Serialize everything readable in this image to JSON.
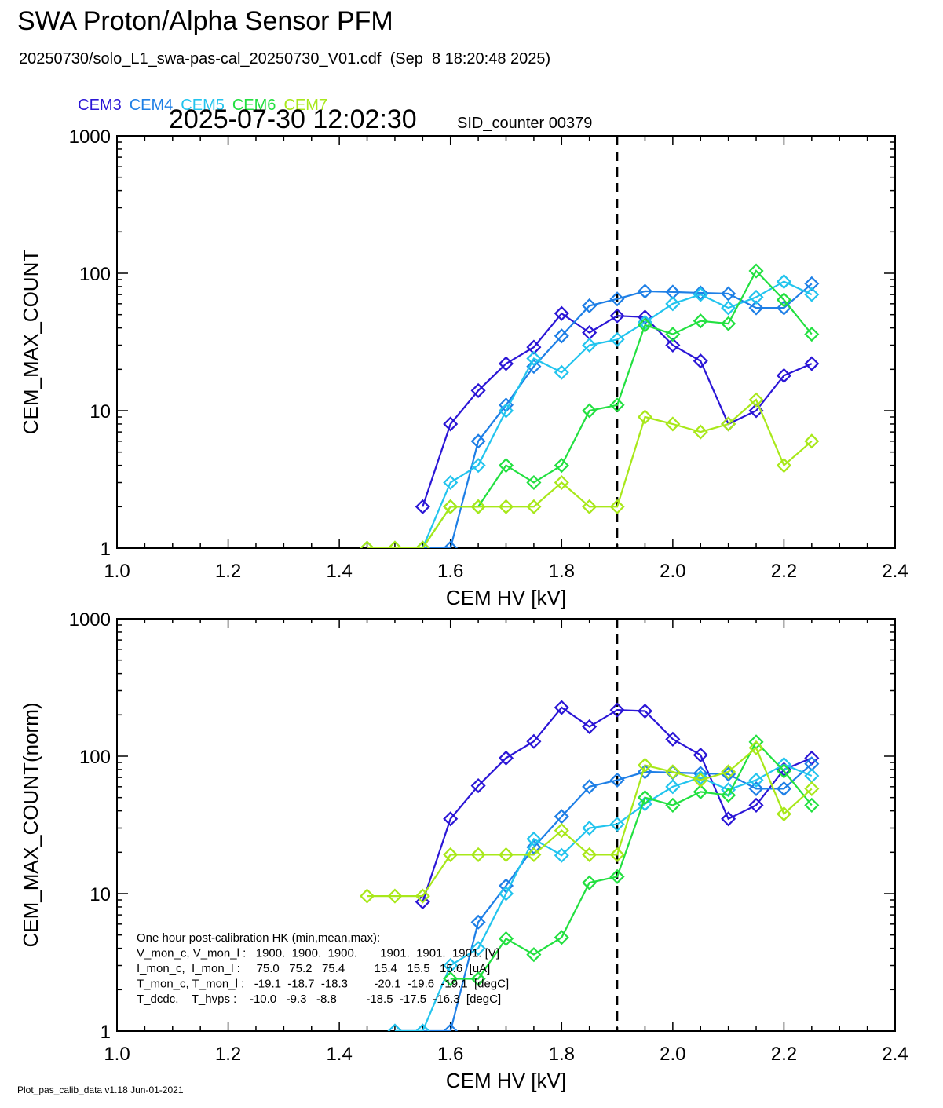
{
  "header": {
    "title": "SWA Proton/Alpha Sensor PFM",
    "subtitle": "20250730/solo_L1_swa-pas-cal_20250730_V01.cdf  (Sep  8 18:20:48 2025)",
    "timestamp": "2025-07-30 12:02:30",
    "sid_counter": "SID_counter 00379"
  },
  "legend": [
    {
      "name": "CEM3",
      "color": "#2b16d6"
    },
    {
      "name": "CEM4",
      "color": "#1e7fe6"
    },
    {
      "name": "CEM5",
      "color": "#22c4ee"
    },
    {
      "name": "CEM6",
      "color": "#22e040"
    },
    {
      "name": "CEM7",
      "color": "#a8e81a"
    }
  ],
  "hk_box": [
    "One hour post-calibration HK (min,mean,max):",
    "V_mon_c, V_mon_l :   1900.  1900.  1900.       1901.  1901.  1901. [V]",
    "I_mon_c,  I_mon_l :     75.0   75.2   75.4         15.4   15.5   15.6  [uA]",
    "T_mon_c, T_mon_l :   -19.1  -18.7  -18.3        -20.1  -19.6  -19.1  [degC]",
    "T_dcdc,    T_hvps :    -10.0   -9.3   -8.8         -18.5  -17.5  -16.3  [degC]"
  ],
  "footer": "Plot_pas_calib_data v1.18 Jun-01-2021",
  "chart_data": [
    {
      "type": "line",
      "xlabel": "CEM HV [kV]",
      "ylabel": "CEM_MAX_COUNT",
      "xlim": [
        1.0,
        2.4
      ],
      "ylim": [
        1,
        1000
      ],
      "yscale": "log",
      "x_ticks": [
        "1.0",
        "1.2",
        "1.4",
        "1.6",
        "1.8",
        "2.0",
        "2.2",
        "2.4"
      ],
      "y_ticks": [
        "1",
        "10",
        "100",
        "1000"
      ],
      "vline": 1.9,
      "series": [
        {
          "name": "CEM3",
          "x": [
            1.55,
            1.6,
            1.65,
            1.7,
            1.75,
            1.8,
            1.85,
            1.9,
            1.95,
            2.0,
            2.05,
            2.1,
            2.15,
            2.2,
            2.25
          ],
          "values": [
            2,
            8,
            14,
            22,
            29,
            51,
            37,
            49,
            48,
            30,
            23,
            8,
            10,
            18,
            22
          ]
        },
        {
          "name": "CEM4",
          "x": [
            1.55,
            1.6,
            1.65,
            1.7,
            1.75,
            1.8,
            1.85,
            1.9,
            1.95,
            2.0,
            2.05,
            2.1,
            2.15,
            2.2,
            2.25
          ],
          "values": [
            1,
            1,
            6,
            11,
            21,
            35,
            58,
            65,
            74,
            73,
            72,
            71,
            56,
            56,
            84
          ]
        },
        {
          "name": "CEM5",
          "x": [
            1.55,
            1.6,
            1.65,
            1.7,
            1.75,
            1.8,
            1.85,
            1.9,
            1.95,
            2.0,
            2.05,
            2.1,
            2.15,
            2.2,
            2.25
          ],
          "values": [
            1,
            3,
            4,
            10,
            24,
            19,
            30,
            33,
            44,
            60,
            70,
            56,
            67,
            87,
            70
          ]
        },
        {
          "name": "CEM6",
          "x": [
            1.45,
            1.5,
            1.55,
            1.6,
            1.65,
            1.7,
            1.75,
            1.8,
            1.85,
            1.9,
            1.95,
            2.0,
            2.05,
            2.1,
            2.15,
            2.2,
            2.25
          ],
          "values": [
            1,
            1,
            1,
            2,
            2,
            4,
            3,
            4,
            10,
            11,
            42,
            36,
            45,
            43,
            104,
            64,
            36
          ]
        },
        {
          "name": "CEM7",
          "x": [
            1.45,
            1.5,
            1.55,
            1.6,
            1.65,
            1.7,
            1.75,
            1.8,
            1.85,
            1.9,
            1.95,
            2.0,
            2.05,
            2.1,
            2.15,
            2.2,
            2.25
          ],
          "values": [
            1,
            1,
            1,
            2,
            2,
            2,
            2,
            3,
            2,
            2,
            9,
            8,
            7,
            8,
            12,
            4,
            6
          ]
        }
      ]
    },
    {
      "type": "line",
      "xlabel": "CEM HV [kV]",
      "ylabel": "CEM_MAX_COUNT(norm)",
      "xlim": [
        1.0,
        2.4
      ],
      "ylim": [
        1,
        1000
      ],
      "yscale": "log",
      "x_ticks": [
        "1.0",
        "1.2",
        "1.4",
        "1.6",
        "1.8",
        "2.0",
        "2.2",
        "2.4"
      ],
      "y_ticks": [
        "1",
        "10",
        "100",
        "1000"
      ],
      "vline": 1.9,
      "series": [
        {
          "name": "CEM3",
          "x": [
            1.55,
            1.6,
            1.65,
            1.7,
            1.75,
            1.8,
            1.85,
            1.9,
            1.95,
            2.0,
            2.05,
            2.1,
            2.15,
            2.2,
            2.25
          ],
          "values": [
            8.7,
            35,
            61,
            97,
            128,
            226,
            164,
            217,
            213,
            133,
            102,
            35,
            44,
            80,
            97
          ]
        },
        {
          "name": "CEM4",
          "x": [
            1.5,
            1.55,
            1.6,
            1.65,
            1.7,
            1.75,
            1.8,
            1.85,
            1.9,
            1.95,
            2.0,
            2.05,
            2.1,
            2.15,
            2.2,
            2.25
          ],
          "values": [
            1,
            1,
            1,
            6.2,
            11.4,
            21.8,
            36.4,
            60,
            67,
            77,
            76,
            75,
            74,
            58,
            58,
            88
          ]
        },
        {
          "name": "CEM5",
          "x": [
            1.5,
            1.55,
            1.6,
            1.65,
            1.7,
            1.75,
            1.8,
            1.85,
            1.9,
            1.95,
            2.0,
            2.05,
            2.1,
            2.15,
            2.2,
            2.25
          ],
          "values": [
            1,
            1,
            3,
            4,
            10,
            25,
            19,
            30,
            32,
            45,
            60,
            70,
            57,
            67,
            87,
            72
          ]
        },
        {
          "name": "CEM6",
          "x": [
            1.6,
            1.65,
            1.7,
            1.75,
            1.8,
            1.85,
            1.9,
            1.95,
            2.0,
            2.05,
            2.1,
            2.15,
            2.2,
            2.25
          ],
          "values": [
            2.4,
            2.4,
            4.7,
            3.6,
            4.8,
            12,
            13.3,
            50,
            44,
            55,
            52,
            127,
            78,
            44
          ]
        },
        {
          "name": "CEM7",
          "x": [
            1.45,
            1.5,
            1.55,
            1.6,
            1.65,
            1.7,
            1.75,
            1.8,
            1.85,
            1.9,
            1.95,
            2.0,
            2.05,
            2.1,
            2.15,
            2.2,
            2.25
          ],
          "values": [
            9.6,
            9.6,
            9.6,
            19.2,
            19.2,
            19.2,
            19.2,
            28.8,
            19.2,
            19.2,
            86,
            77,
            67,
            77,
            115,
            38,
            58
          ]
        }
      ]
    }
  ]
}
